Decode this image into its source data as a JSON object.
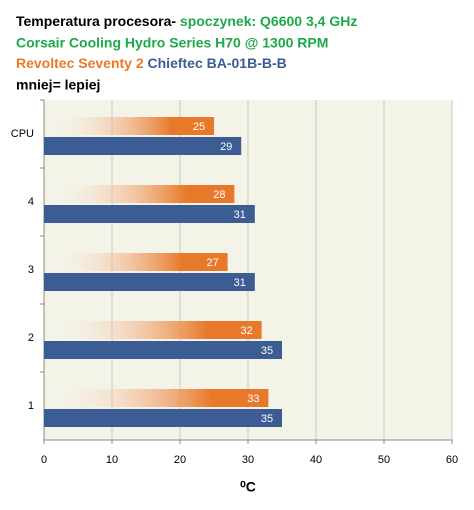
{
  "chart_data": {
    "type": "hbar",
    "title": "Temperatura procesora-",
    "subtitle": [
      "spoczynek: Q6600 3,4 GHz",
      "Corsair Cooling Hydro Series H70 @ 1300 RPM"
    ],
    "annotation": "mniej= lepiej",
    "x_label": "⁰C",
    "categories": [
      "CPU",
      "4",
      "3",
      "2",
      "1"
    ],
    "series": [
      {
        "name": "Revoltec Seventy 2",
        "color": "#e8792a",
        "values": [
          25,
          28,
          27,
          32,
          33
        ]
      },
      {
        "name": "Chieftec BA-01B-B-B",
        "color": "#3b5d93",
        "values": [
          29,
          31,
          31,
          35,
          35
        ]
      }
    ],
    "xlim": [
      0,
      60
    ],
    "xticks": [
      0,
      10,
      20,
      30,
      40,
      50,
      60
    ],
    "grid": true
  }
}
